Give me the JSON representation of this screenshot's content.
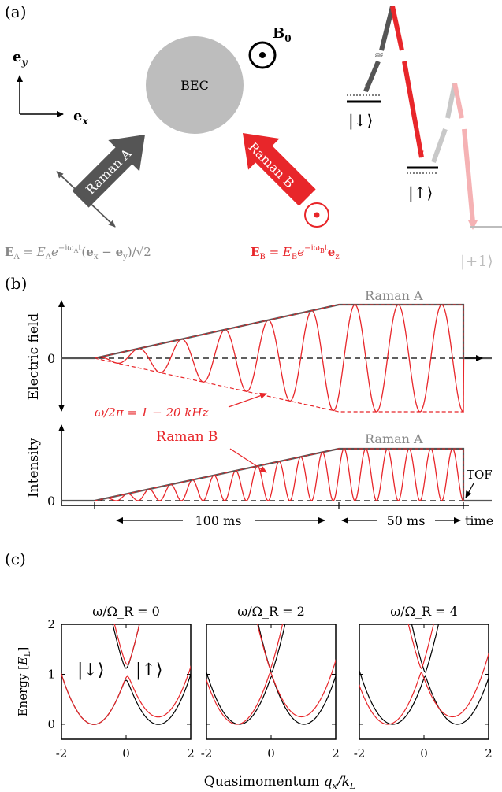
{
  "colors": {
    "black": "#000000",
    "gray_dark": "#555555",
    "gray": "#888888",
    "gray_light": "#c8c8c8",
    "red": "#e8262a",
    "pink": "#f5b2b4",
    "bec": "#bdbdbd"
  },
  "panel_a": {
    "label": "(a)",
    "ey": "e",
    "ey_sub": "y",
    "ex": "e",
    "ex_sub": "x",
    "bec": "BEC",
    "b0": "B",
    "b0_sub": "0",
    "raman_a": "Raman A",
    "raman_b": "Raman B",
    "ea_eq": "E_A = E_A e^{-iω_A t}(e_x − e_y)/√2",
    "eb_eq": "E_B = E_B e^{-iω_B t} e_z",
    "down_state": "|↓⟩",
    "up_state": "|↑⟩",
    "plus_state": "|+1⟩"
  },
  "panel_b": {
    "label": "(b)",
    "top_ylabel": "Electric field",
    "bottom_ylabel": "Intensity",
    "zero_top": "0",
    "zero_bottom": "0",
    "raman_a_top": "Raman A",
    "raman_a_bottom": "Raman A",
    "raman_b": "Raman B",
    "omega_label": "ω/2π = 1 − 20 kHz",
    "tof": "TOF",
    "dur_100": "100 ms",
    "dur_50": "50 ms",
    "time": "time"
  },
  "panel_c": {
    "label": "(c)",
    "ylabel": "Energy [E_L]",
    "xlabel": "Quasimomentum q_x/k_L",
    "down_state": "|↓⟩",
    "up_state": "|↑⟩"
  },
  "chart_data": [
    {
      "type": "line",
      "title": "ω/Ω_R = 0",
      "omega_over_omegaR": 0,
      "xlim": [
        -2,
        2
      ],
      "ylim": [
        -0.3,
        2
      ],
      "xticks": [
        -2,
        0,
        2
      ],
      "yticks": [
        0,
        1,
        2
      ],
      "series": [
        {
          "color": "#000000",
          "type": "band_pair"
        },
        {
          "color": "#e8262a",
          "type": "band_pair"
        }
      ]
    },
    {
      "type": "line",
      "title": "ω/Ω_R = 2",
      "omega_over_omegaR": 2,
      "xlim": [
        -2,
        2
      ],
      "ylim": [
        -0.3,
        2
      ],
      "xticks": [
        -2,
        0,
        2
      ],
      "yticks": [
        0,
        1,
        2
      ],
      "series": [
        {
          "color": "#000000",
          "type": "band_pair"
        },
        {
          "color": "#e8262a",
          "type": "band_pair"
        }
      ]
    },
    {
      "type": "line",
      "title": "ω/Ω_R = 4",
      "omega_over_omegaR": 4,
      "xlim": [
        -2,
        2
      ],
      "ylim": [
        -0.3,
        2
      ],
      "xticks": [
        -2,
        0,
        2
      ],
      "yticks": [
        0,
        1,
        2
      ],
      "series": [
        {
          "color": "#000000",
          "type": "band_pair"
        },
        {
          "color": "#e8262a",
          "type": "band_pair"
        }
      ]
    }
  ]
}
